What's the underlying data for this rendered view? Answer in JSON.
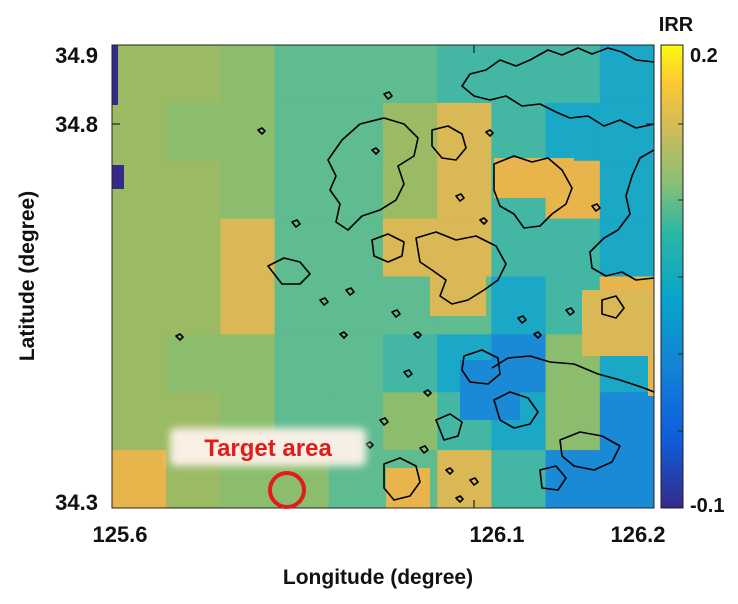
{
  "map": {
    "xlabel": "Longitude (degree)",
    "ylabel": "Latitude (degree)",
    "x_ticks": [
      "125.6",
      "126.1",
      "126.2"
    ],
    "y_ticks": [
      "34.9",
      "34.8",
      "34.3"
    ],
    "x_tick_values": [
      125.6,
      126.1,
      126.2
    ],
    "y_tick_values": [
      34.9,
      34.8,
      34.3
    ],
    "x_range": [
      125.6,
      126.2
    ],
    "y_range": [
      34.3,
      34.9
    ],
    "annotation": {
      "label": "Target area",
      "lon": 125.76,
      "lat": 34.32,
      "color": "#e21b1b"
    },
    "coastline_color": "#000000"
  },
  "colorbar": {
    "title": "IRR",
    "max_label": "0.2",
    "min_label": "-0.1",
    "range": [
      -0.1,
      0.2
    ],
    "colormap": "parula"
  }
}
